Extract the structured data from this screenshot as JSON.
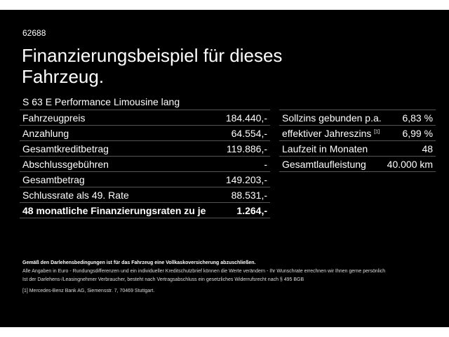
{
  "offer_id": "62688",
  "title": "Finanzierungsbeispiel für dieses Fahrzeug.",
  "model": "S 63 E Performance Limousine lang",
  "left_rows": [
    {
      "label": "Fahrzeugpreis",
      "value": "184.440,-"
    },
    {
      "label": "Anzahlung",
      "value": "64.554,-"
    },
    {
      "label": "Gesamtkreditbetrag",
      "value": "119.886,-"
    },
    {
      "label": "Abschlussgebühren",
      "value": "-"
    },
    {
      "label": "Gesamtbetrag",
      "value": "149.203,-"
    },
    {
      "label": "Schlussrate als 49. Rate",
      "value": "88.531,-"
    },
    {
      "label": "48 monatliche Finanzierungsraten zu je",
      "value": "1.264,-"
    }
  ],
  "right_rows": [
    {
      "label": "Sollzins gebunden p.a.",
      "value": "6,83 %"
    },
    {
      "label": "effektiver Jahreszins",
      "sup": "[1]",
      "value": "6,99 %"
    },
    {
      "label": "Laufzeit in Monaten",
      "value": "48"
    },
    {
      "label": "Gesamtlaufleistung",
      "value": "40.000 km"
    }
  ],
  "notes": {
    "bold": "Gemäß den Darlehensbedingungen ist für das Fahrzeug eine Vollkaskoversicherung abzuschließen.",
    "line1": "Alle Angaben in Euro - Rundungsdifferenzen und ein individueller Kreditschutzbrief können die Werte verändern - Ihr Wunschrate errechnen wir Ihnen gerne persönlich",
    "line2": "Ist der Darlehens-/Leasingnehmer Verbraucher, besteht nach Vertragsabschluss ein gesetzliches Widerrufsrecht nach § 495 BGB",
    "footnote": "[1] Mercedes-Benz Bank AG, Siemensstr. 7, 70469 Stuttgart."
  }
}
